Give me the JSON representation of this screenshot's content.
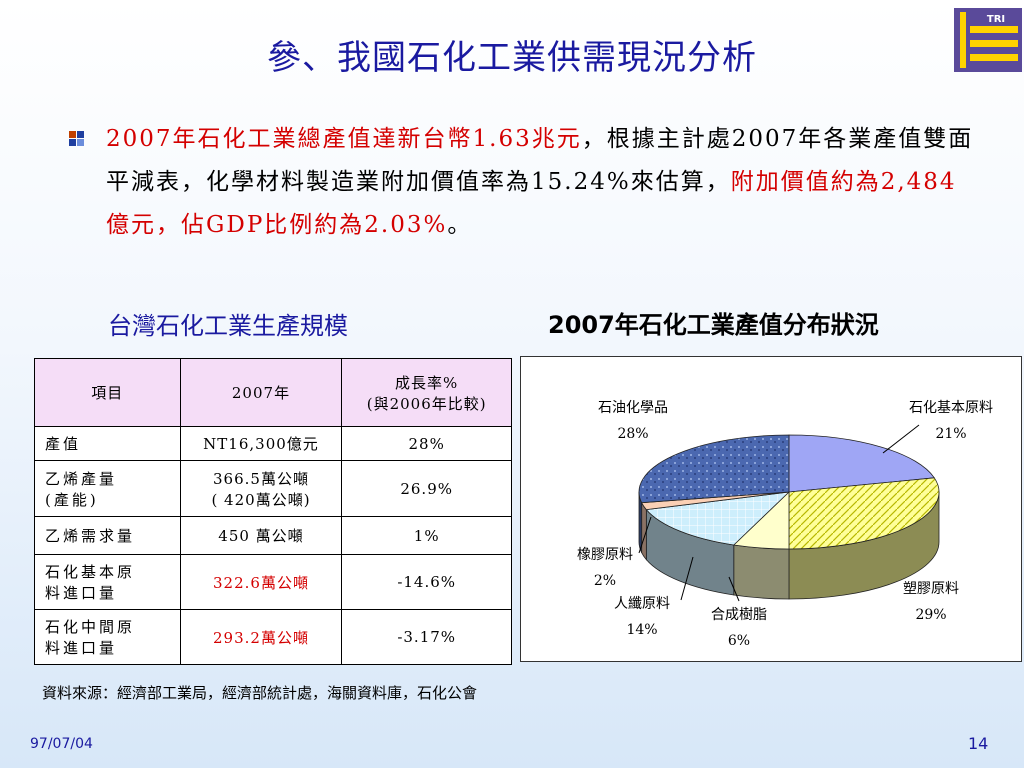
{
  "title": "參、我國石化工業供需現況分析",
  "logo_text": "TRI",
  "paragraph": {
    "s1": "2007年石化工業總產值達新台幣1.63兆元",
    "s2": "，根據主計處2007年各業產值雙面平減表，化學材料製造業附加價值率為15.24%來估算，",
    "s3": "附加價值約為2,484億元，佔GDP比例約為2.03%",
    "s4": "。"
  },
  "table_heading": "台灣石化工業生產規模",
  "chart_heading": "2007年石化工業產值分布狀況",
  "table": {
    "header": {
      "item": "項目",
      "year": "2007年",
      "growth_line1": "成長率%",
      "growth_line2": "(與2006年比較)"
    },
    "rows": [
      {
        "label": [
          "產值"
        ],
        "value": [
          "NT16,300億元"
        ],
        "growth": "28%",
        "red": false
      },
      {
        "label": [
          "乙烯產量",
          "(產能)"
        ],
        "value": [
          "366.5萬公噸",
          "( 420萬公噸)"
        ],
        "growth": "26.9%",
        "red": false
      },
      {
        "label": [
          "乙烯需求量"
        ],
        "value": [
          "450 萬公噸"
        ],
        "growth": "1%",
        "red": false
      },
      {
        "label": [
          "石化基本原",
          "料進口量"
        ],
        "value": [
          "322.6萬公噸"
        ],
        "growth": "-14.6%",
        "red": true
      },
      {
        "label": [
          "石化中間原",
          "料進口量"
        ],
        "value": [
          "293.2萬公噸"
        ],
        "growth": "-3.17%",
        "red": true
      }
    ]
  },
  "chart_data": {
    "type": "pie",
    "title": "2007年石化工業產值分布狀況",
    "slices": [
      {
        "name": "石化基本原料",
        "value": 21,
        "label": "21%",
        "color": "#9fa6f5",
        "pattern": "solid"
      },
      {
        "name": "塑膠原料",
        "value": 29,
        "label": "29%",
        "color": "#ffff99",
        "pattern": "diag"
      },
      {
        "name": "合成樹脂",
        "value": 6,
        "label": "6%",
        "color": "#ffffcc",
        "pattern": "solid"
      },
      {
        "name": "人纖原料",
        "value": 14,
        "label": "14%",
        "color": "#cdeefc",
        "pattern": "grid"
      },
      {
        "name": "橡膠原料",
        "value": 2,
        "label": "2%",
        "color": "#fbd0b5",
        "pattern": "solid"
      },
      {
        "name": "石油化學品",
        "value": 28,
        "label": "28%",
        "color": "#4b68b0",
        "pattern": "speckle"
      }
    ]
  },
  "source": "資料來源：經濟部工業局，經濟部統計處，海關資料庫，石化公會",
  "footer": {
    "date": "97/07/04",
    "page": "14"
  }
}
